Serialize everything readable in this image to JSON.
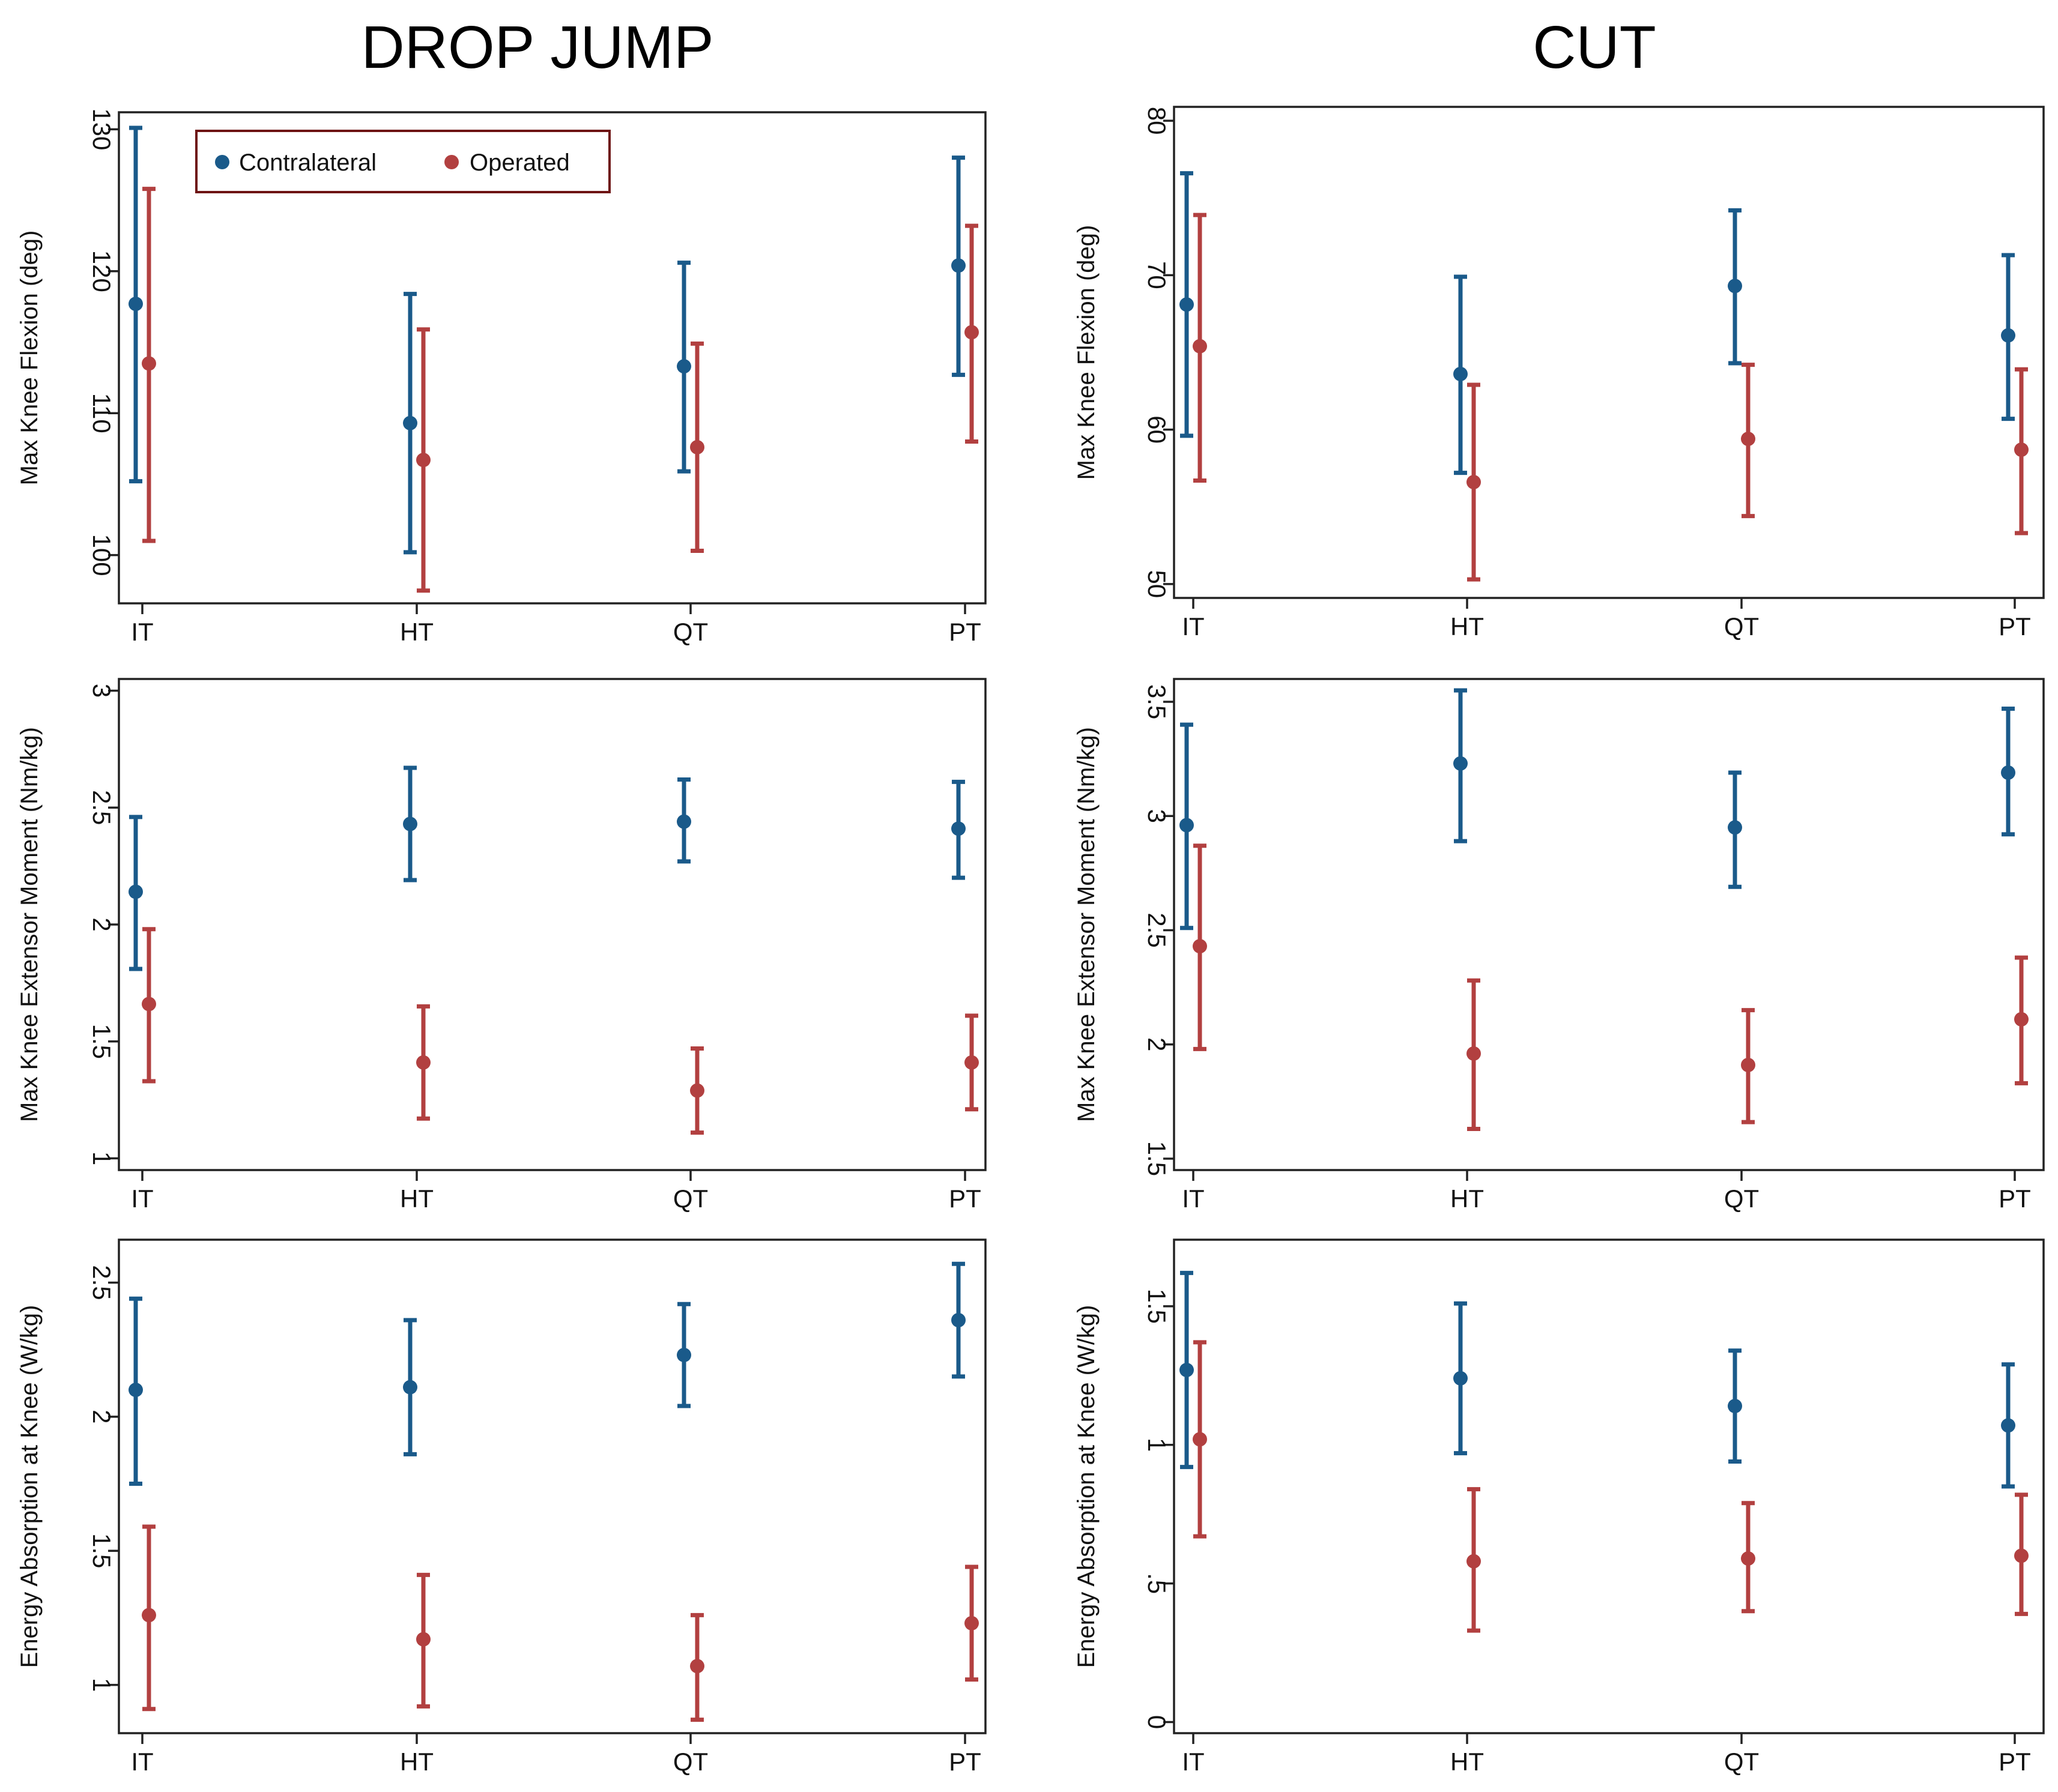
{
  "columns": {
    "left": "DROP JUMP",
    "right": "CUT"
  },
  "colors": {
    "contralateral": "#1a5a8a",
    "operated": "#b24040"
  },
  "legend": {
    "contralateral": "Contralateral",
    "operated": "Operated"
  },
  "chart_data": [
    {
      "id": "dj-flexion",
      "type": "errorbar",
      "column": "DROP JUMP",
      "ylabel": "Max Knee Flexion (deg)",
      "ylim": [
        96.6,
        131.2
      ],
      "yticks": [
        {
          "value": 100,
          "label": "100"
        },
        {
          "value": 110,
          "label": "110"
        },
        {
          "value": 120,
          "label": "120"
        },
        {
          "value": 130,
          "label": "130"
        }
      ],
      "categories": [
        "IT",
        "HT",
        "QT",
        "PT"
      ],
      "legend_position": "top-left",
      "series": [
        {
          "name": "Contralateral",
          "mean": [
            117.7,
            109.3,
            113.3,
            120.4
          ],
          "lower": [
            105.2,
            100.2,
            105.9,
            112.7
          ],
          "upper": [
            130.1,
            118.4,
            120.6,
            128.0
          ]
        },
        {
          "name": "Operated",
          "mean": [
            113.5,
            106.7,
            107.6,
            115.7
          ],
          "lower": [
            101.0,
            97.5,
            100.3,
            108.0
          ],
          "upper": [
            125.8,
            115.9,
            114.9,
            123.2
          ]
        }
      ]
    },
    {
      "id": "cut-flexion",
      "type": "errorbar",
      "column": "CUT",
      "ylabel": "Max Knee Flexion (deg)",
      "ylim": [
        49.1,
        80.9
      ],
      "yticks": [
        {
          "value": 50,
          "label": "50"
        },
        {
          "value": 60,
          "label": "60"
        },
        {
          "value": 70,
          "label": "70"
        },
        {
          "value": 80,
          "label": "80"
        }
      ],
      "categories": [
        "IT",
        "HT",
        "QT",
        "PT"
      ],
      "series": [
        {
          "name": "Contralateral",
          "mean": [
            68.1,
            63.6,
            69.3,
            66.1
          ],
          "lower": [
            59.6,
            57.2,
            64.3,
            60.7
          ],
          "upper": [
            76.6,
            69.9,
            74.2,
            71.3
          ]
        },
        {
          "name": "Operated",
          "mean": [
            65.4,
            56.6,
            59.4,
            58.7
          ],
          "lower": [
            56.7,
            50.3,
            54.4,
            53.3
          ],
          "upper": [
            73.9,
            62.9,
            64.2,
            63.9
          ]
        }
      ]
    },
    {
      "id": "dj-moment",
      "type": "errorbar",
      "column": "DROP JUMP",
      "ylabel": "Max Knee Extensor Moment (Nm/kg)",
      "ylim": [
        0.95,
        3.05
      ],
      "yticks": [
        {
          "value": 1,
          "label": "1"
        },
        {
          "value": 1.5,
          "label": "1.5"
        },
        {
          "value": 2,
          "label": "2"
        },
        {
          "value": 2.5,
          "label": "2.5"
        },
        {
          "value": 3,
          "label": "3"
        }
      ],
      "categories": [
        "IT",
        "HT",
        "QT",
        "PT"
      ],
      "series": [
        {
          "name": "Contralateral",
          "mean": [
            2.14,
            2.43,
            2.44,
            2.41
          ],
          "lower": [
            1.81,
            2.19,
            2.27,
            2.2
          ],
          "upper": [
            2.46,
            2.67,
            2.62,
            2.61
          ]
        },
        {
          "name": "Operated",
          "mean": [
            1.66,
            1.41,
            1.29,
            1.41
          ],
          "lower": [
            1.33,
            1.17,
            1.11,
            1.21
          ],
          "upper": [
            1.98,
            1.65,
            1.47,
            1.61
          ]
        }
      ]
    },
    {
      "id": "cut-moment",
      "type": "errorbar",
      "column": "CUT",
      "ylabel": "Max Knee Extensor Moment (Nm/kg)",
      "ylim": [
        1.45,
        3.6
      ],
      "yticks": [
        {
          "value": 1.5,
          "label": "1.5"
        },
        {
          "value": 2,
          "label": "2"
        },
        {
          "value": 2.5,
          "label": "2.5"
        },
        {
          "value": 3,
          "label": "3"
        },
        {
          "value": 3.5,
          "label": "3.5"
        }
      ],
      "categories": [
        "IT",
        "HT",
        "QT",
        "PT"
      ],
      "series": [
        {
          "name": "Contralateral",
          "mean": [
            2.96,
            3.23,
            2.95,
            3.19
          ],
          "lower": [
            2.51,
            2.89,
            2.69,
            2.92
          ],
          "upper": [
            3.4,
            3.55,
            3.19,
            3.47
          ]
        },
        {
          "name": "Operated",
          "mean": [
            2.43,
            1.96,
            1.91,
            2.11
          ],
          "lower": [
            1.98,
            1.63,
            1.66,
            1.83
          ],
          "upper": [
            2.87,
            2.28,
            2.15,
            2.38
          ]
        }
      ]
    },
    {
      "id": "dj-energy",
      "type": "errorbar",
      "column": "DROP JUMP",
      "ylabel": "Energy Absorption at Knee (W/kg)",
      "ylim": [
        0.82,
        2.66
      ],
      "yticks": [
        {
          "value": 1,
          "label": "1"
        },
        {
          "value": 1.5,
          "label": "1.5"
        },
        {
          "value": 2,
          "label": "2"
        },
        {
          "value": 2.5,
          "label": "2.5"
        }
      ],
      "categories": [
        "IT",
        "HT",
        "QT",
        "PT"
      ],
      "series": [
        {
          "name": "Contralateral",
          "mean": [
            2.1,
            2.11,
            2.23,
            2.36
          ],
          "lower": [
            1.75,
            1.86,
            2.04,
            2.15
          ],
          "upper": [
            2.44,
            2.36,
            2.42,
            2.57
          ]
        },
        {
          "name": "Operated",
          "mean": [
            1.26,
            1.17,
            1.07,
            1.23
          ],
          "lower": [
            0.91,
            0.92,
            0.87,
            1.02
          ],
          "upper": [
            1.59,
            1.41,
            1.26,
            1.44
          ]
        }
      ]
    },
    {
      "id": "cut-energy",
      "type": "errorbar",
      "column": "CUT",
      "ylabel": "Energy Absorption at Knee (W/kg)",
      "ylim": [
        -0.04,
        1.74
      ],
      "yticks": [
        {
          "value": 0,
          "label": "0"
        },
        {
          "value": 0.5,
          "label": ".5"
        },
        {
          "value": 1,
          "label": "1"
        },
        {
          "value": 1.5,
          "label": "1.5"
        }
      ],
      "categories": [
        "IT",
        "HT",
        "QT",
        "PT"
      ],
      "series": [
        {
          "name": "Contralateral",
          "mean": [
            1.27,
            1.24,
            1.14,
            1.07
          ],
          "lower": [
            0.92,
            0.97,
            0.94,
            0.85
          ],
          "upper": [
            1.62,
            1.51,
            1.34,
            1.29
          ]
        },
        {
          "name": "Operated",
          "mean": [
            1.02,
            0.58,
            0.59,
            0.6
          ],
          "lower": [
            0.67,
            0.33,
            0.4,
            0.39
          ],
          "upper": [
            1.37,
            0.84,
            0.79,
            0.82
          ]
        }
      ]
    }
  ]
}
